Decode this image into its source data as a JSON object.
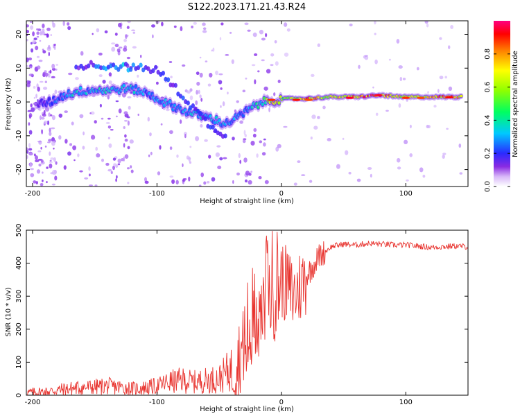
{
  "figure_title": "S122.2023.171.21.43.R24",
  "colors": {
    "snr_line": "#e8342f",
    "background": "#ffffff",
    "axis": "#000000"
  },
  "chart_data": [
    {
      "type": "heatmap",
      "xlabel": "Height of straight line (km)",
      "ylabel": "Frequency (Hz)",
      "xlim": [
        -205,
        150
      ],
      "ylim": [
        -25,
        24
      ],
      "xticks": [
        -200,
        -100,
        0,
        100
      ],
      "yticks": [
        -20,
        -10,
        0,
        10,
        20
      ],
      "xtick_labels": [
        "-200",
        "-100",
        "0",
        "100"
      ],
      "ytick_labels": [
        "-20",
        "-10",
        "0",
        "10",
        "20"
      ],
      "colorbar": {
        "label": "Normalized spectral amplitude",
        "range": [
          0,
          1
        ],
        "ticks": [
          0.0,
          0.2,
          0.4,
          0.6,
          0.8
        ],
        "tick_labels": [
          "0.0",
          "0.2",
          "0.4",
          "0.6",
          "0.8"
        ],
        "colormap": "hsv-rainbow (white-violet-blue-cyan-green-yellow-red)"
      },
      "ridge": [
        {
          "x": -195,
          "y": -0.5,
          "amp": 0.2
        },
        {
          "x": -185,
          "y": 0.0,
          "amp": 0.3
        },
        {
          "x": -175,
          "y": 2.0,
          "amp": 0.35
        },
        {
          "x": -165,
          "y": 3.0,
          "amp": 0.45
        },
        {
          "x": -155,
          "y": 3.5,
          "amp": 0.4
        },
        {
          "x": -145,
          "y": 3.5,
          "amp": 0.45
        },
        {
          "x": -135,
          "y": 3.5,
          "amp": 0.4
        },
        {
          "x": -125,
          "y": 4.0,
          "amp": 0.45
        },
        {
          "x": -115,
          "y": 3.5,
          "amp": 0.4
        },
        {
          "x": -105,
          "y": 2.0,
          "amp": 0.35
        },
        {
          "x": -95,
          "y": 0.0,
          "amp": 0.4
        },
        {
          "x": -85,
          "y": -1.5,
          "amp": 0.35
        },
        {
          "x": -75,
          "y": -3.0,
          "amp": 0.4
        },
        {
          "x": -65,
          "y": -4.0,
          "amp": 0.45
        },
        {
          "x": -55,
          "y": -5.0,
          "amp": 0.4
        },
        {
          "x": -45,
          "y": -6.5,
          "amp": 0.4
        },
        {
          "x": -35,
          "y": -4.5,
          "amp": 0.35
        },
        {
          "x": -25,
          "y": -2.0,
          "amp": 0.4
        },
        {
          "x": -15,
          "y": 0.0,
          "amp": 0.5
        },
        {
          "x": -5,
          "y": 0.5,
          "amp": 0.85
        },
        {
          "x": 5,
          "y": 1.0,
          "amp": 0.6
        },
        {
          "x": 20,
          "y": 1.0,
          "amp": 0.85
        },
        {
          "x": 40,
          "y": 1.5,
          "amp": 0.7
        },
        {
          "x": 60,
          "y": 1.5,
          "amp": 0.9
        },
        {
          "x": 80,
          "y": 2.0,
          "amp": 0.9
        },
        {
          "x": 95,
          "y": 1.5,
          "amp": 0.8
        },
        {
          "x": 110,
          "y": 1.5,
          "amp": 0.7
        },
        {
          "x": 130,
          "y": 1.5,
          "amp": 0.85
        },
        {
          "x": 145,
          "y": 1.5,
          "amp": 0.8
        }
      ],
      "secondary_ridge": [
        {
          "x": -165,
          "y": 11.0,
          "amp": 0.25
        },
        {
          "x": -130,
          "y": 10.5,
          "amp": 0.4
        },
        {
          "x": -115,
          "y": 10.0,
          "amp": 0.35
        },
        {
          "x": -100,
          "y": 9.5,
          "amp": 0.3
        },
        {
          "x": -85,
          "y": 4.0,
          "amp": 0.3
        },
        {
          "x": -70,
          "y": -2.0,
          "amp": 0.3
        },
        {
          "x": -55,
          "y": -8.0,
          "amp": 0.3
        },
        {
          "x": -45,
          "y": -9.5,
          "amp": 0.25
        }
      ]
    },
    {
      "type": "line",
      "xlabel": "Height of straight line (km)",
      "ylabel": "SNR (10 * v/v)",
      "xlim": [
        -205,
        150
      ],
      "ylim": [
        0,
        500
      ],
      "xticks": [
        -200,
        -100,
        0,
        100
      ],
      "yticks": [
        0,
        100,
        200,
        300,
        400,
        500
      ],
      "xtick_labels": [
        "-200",
        "-100",
        "0",
        "100"
      ],
      "ytick_labels": [
        "0",
        "100",
        "200",
        "300",
        "400",
        "500"
      ],
      "series": [
        {
          "x": [
            -205,
            -190,
            -175,
            -165,
            -150,
            -140,
            -130,
            -120,
            -110,
            -100,
            -90,
            -80,
            -70,
            -60,
            -50,
            -45,
            -40,
            -35,
            -30,
            -25,
            -20,
            -15,
            -10,
            -5,
            0,
            5,
            10,
            15,
            20,
            25,
            30,
            40,
            50,
            60,
            70,
            80,
            90,
            100,
            110,
            120,
            130,
            140,
            150
          ],
          "y": [
            8,
            10,
            18,
            22,
            25,
            28,
            24,
            20,
            22,
            28,
            40,
            45,
            40,
            45,
            50,
            65,
            80,
            110,
            150,
            200,
            250,
            300,
            320,
            340,
            350,
            330,
            300,
            330,
            360,
            390,
            420,
            450,
            458,
            455,
            460,
            458,
            455,
            455,
            452,
            448,
            450,
            452,
            450
          ]
        }
      ]
    }
  ]
}
